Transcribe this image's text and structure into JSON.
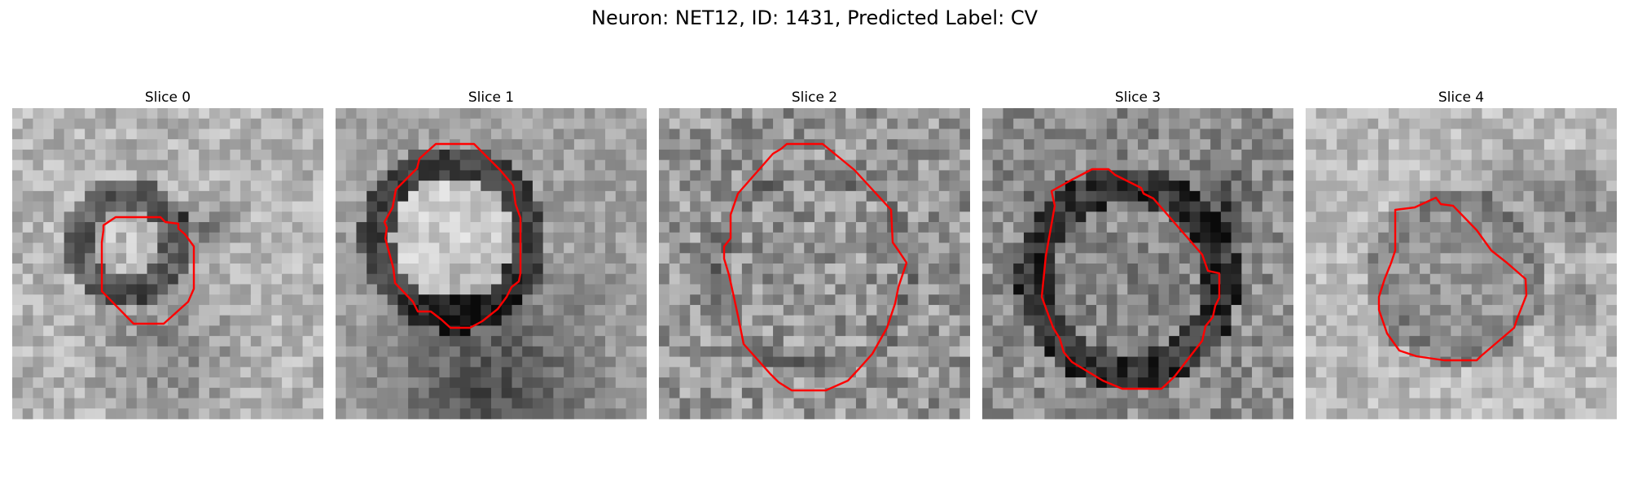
{
  "figure": {
    "title": "Neuron: NET12, ID: 1431, Predicted Label: CV"
  },
  "panels": [
    {
      "title": "Slice 0"
    },
    {
      "title": "Slice 1"
    },
    {
      "title": "Slice 2"
    },
    {
      "title": "Slice 3"
    },
    {
      "title": "Slice 4"
    }
  ],
  "colors": {
    "contour": "#ff0000",
    "background": "#ffffff"
  }
}
